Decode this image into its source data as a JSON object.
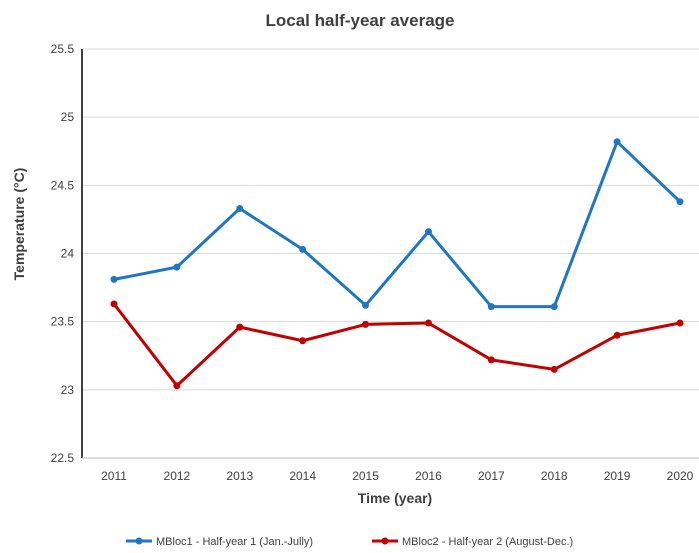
{
  "chart_data": {
    "type": "line",
    "title": "Local half-year average",
    "xlabel": "Time (year)",
    "ylabel": "Temperature (°C)",
    "x": [
      "2011",
      "2012",
      "2013",
      "2014",
      "2015",
      "2016",
      "2017",
      "2018",
      "2019",
      "2020"
    ],
    "ylim": [
      22.5,
      25.5
    ],
    "yticks": [
      "22.5",
      "23",
      "23.5",
      "24",
      "24.5",
      "25",
      "25.5"
    ],
    "grid": true,
    "legend": "bottom",
    "series": [
      {
        "name": "MBloc1 - Half-year 1 (Jan.-Jully)",
        "color": "#1f77c4",
        "values": [
          23.81,
          23.9,
          24.33,
          24.03,
          23.62,
          24.16,
          23.61,
          23.61,
          24.82,
          24.38
        ]
      },
      {
        "name": "MBloc2 - Half-year 2 (August-Dec.)",
        "color": "#c00000",
        "values": [
          23.63,
          23.03,
          23.46,
          23.36,
          23.48,
          23.49,
          23.22,
          23.15,
          23.4,
          23.49
        ]
      }
    ]
  }
}
